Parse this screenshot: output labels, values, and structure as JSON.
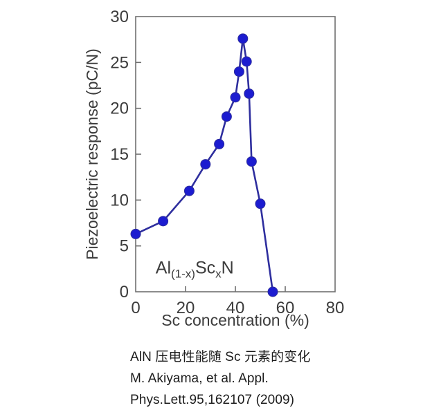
{
  "chart_data": {
    "type": "line",
    "title": "",
    "xlabel": "Sc concentration (%)",
    "ylabel": "Piezoelectric response (pC/N)",
    "xlim": [
      0,
      80
    ],
    "ylim": [
      0,
      30
    ],
    "x_ticks": [
      0,
      20,
      40,
      60,
      80
    ],
    "y_ticks": [
      0,
      5,
      10,
      15,
      20,
      25,
      30
    ],
    "grid": false,
    "legend_position": "none",
    "series": [
      {
        "name": "Al(1-x)ScxN piezoelectric response",
        "marker": "circle",
        "x": [
          0,
          11,
          21.5,
          28,
          33.5,
          36.5,
          40,
          41.5,
          43,
          44.5,
          45.5,
          46.5,
          50,
          55
        ],
        "y": [
          6.3,
          7.7,
          11.0,
          13.9,
          16.1,
          19.1,
          21.2,
          24.0,
          27.6,
          25.1,
          21.6,
          14.2,
          9.6,
          0.0
        ]
      }
    ],
    "annotation": {
      "parts": [
        {
          "t": "Al",
          "sub": false
        },
        {
          "t": "(1-x)",
          "sub": true
        },
        {
          "t": "Sc",
          "sub": false
        },
        {
          "t": "x",
          "sub": true
        },
        {
          "t": "N",
          "sub": false
        }
      ],
      "x": 8,
      "y": 2
    }
  },
  "caption": {
    "lines": [
      "AlN 压电性能随 Sc 元素的变化",
      "M. Akiyama, et al. Appl.",
      "Phys.Lett.95,162107 (2009)"
    ]
  },
  "colors": {
    "marker": "#1c1cd0",
    "line": "#2e2e9e",
    "spine": "#6f6f6f",
    "tick_label": "#3c3c3c",
    "axis_label": "#3c3c3c",
    "annotation": "#3c3c3c",
    "caption_text": "#1c1c1c",
    "background": "#ffffff"
  }
}
